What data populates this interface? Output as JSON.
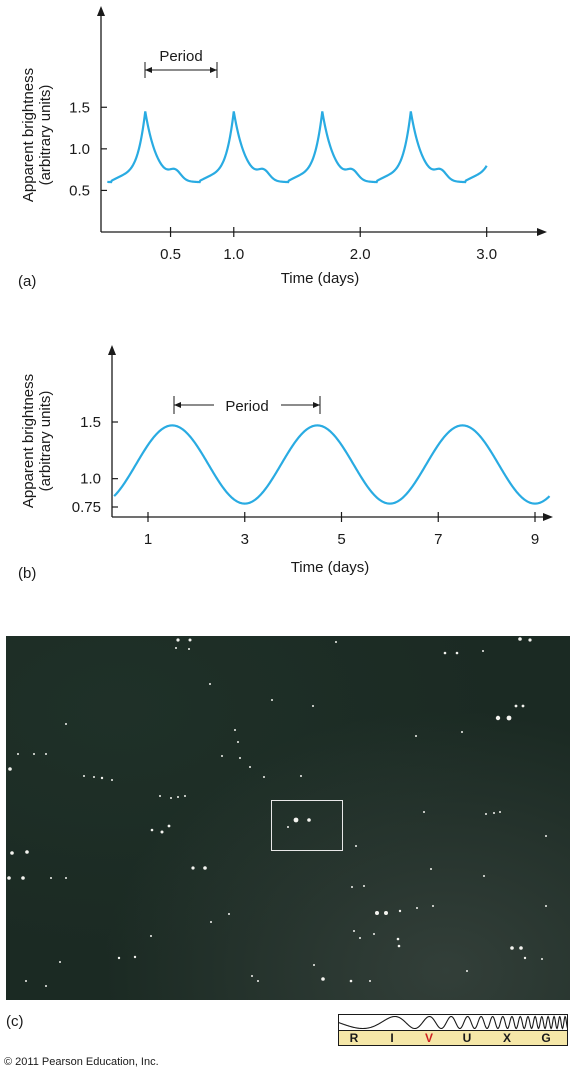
{
  "panel_labels": {
    "a": "(a)",
    "b": "(b)",
    "c": "(c)"
  },
  "chart_data": [
    {
      "type": "line",
      "panel": "(a)",
      "xlabel": "Time (days)",
      "ylabel": [
        "Apparent brightness",
        "(arbitrary units)"
      ],
      "x_ticks": [
        "0.5",
        "1.0",
        "2.0",
        "3.0"
      ],
      "x_tick_values": [
        0.5,
        1.0,
        2.0,
        3.0
      ],
      "y_ticks": [
        "0.5",
        "1.0",
        "1.5"
      ],
      "y_tick_values": [
        0.5,
        1.0,
        1.5
      ],
      "annotation": "Period",
      "xlim": [
        0,
        3.3
      ],
      "ylim": [
        0,
        1.9
      ],
      "series": [
        {
          "period_days": 0.7,
          "min": 0.6,
          "max": 1.45,
          "x_start": 0.0,
          "x_end": 3.0,
          "first_peak": 0.3
        }
      ],
      "color": "#29abe2"
    },
    {
      "type": "line",
      "panel": "(b)",
      "xlabel": "Time (days)",
      "ylabel": [
        "Apparent brightness",
        "(arbitrary units)"
      ],
      "x_ticks": [
        "1",
        "3",
        "5",
        "7",
        "9"
      ],
      "x_tick_values": [
        1,
        3,
        5,
        7,
        9
      ],
      "y_ticks": [
        "0.75",
        "1.0",
        "1.5"
      ],
      "y_tick_values": [
        0.75,
        1.0,
        1.5
      ],
      "annotation": "Period",
      "xlim": [
        0,
        9.6
      ],
      "ylim": [
        0.75,
        1.9
      ],
      "series": [
        {
          "period_days": 3.0,
          "min": 0.78,
          "max": 1.47,
          "x_start": 0.3,
          "x_end": 9.3,
          "first_peak": 1.5
        }
      ],
      "color": "#29abe2"
    }
  ],
  "spectrum": {
    "bands": [
      "R",
      "I",
      "V",
      "U",
      "X",
      "G"
    ],
    "highlight": "V",
    "highlight_color": "#cc2222"
  },
  "copyright": "© 2011 Pearson Education, Inc."
}
